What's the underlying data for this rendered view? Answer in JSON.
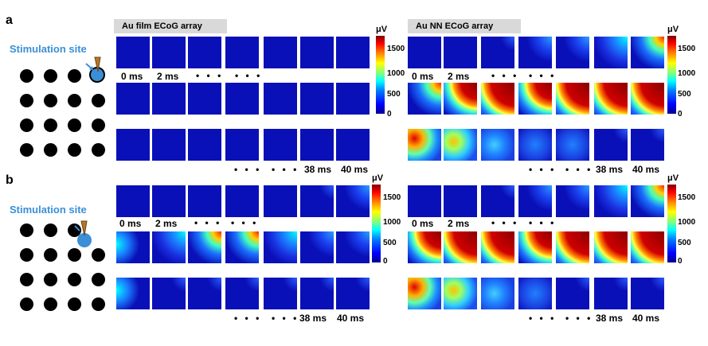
{
  "panels": {
    "a": {
      "letter": "a",
      "stim_label": "Stimulation site"
    },
    "b": {
      "letter": "b",
      "stim_label": "Stimulation site"
    }
  },
  "arrays": {
    "au_film": "Au film ECoG array",
    "au_nn": "Au NN ECoG array"
  },
  "time_labels": {
    "start": "0 ms",
    "second": "2 ms",
    "ellipsis": "• • •",
    "t38": "38 ms",
    "t40": "40 ms"
  },
  "colorbar": {
    "unit": "μV",
    "ticks": [
      "1500",
      "1000",
      "500",
      "0"
    ]
  },
  "colors": {
    "stim_blue": "#3a8fd6",
    "dot": "#000000"
  }
}
